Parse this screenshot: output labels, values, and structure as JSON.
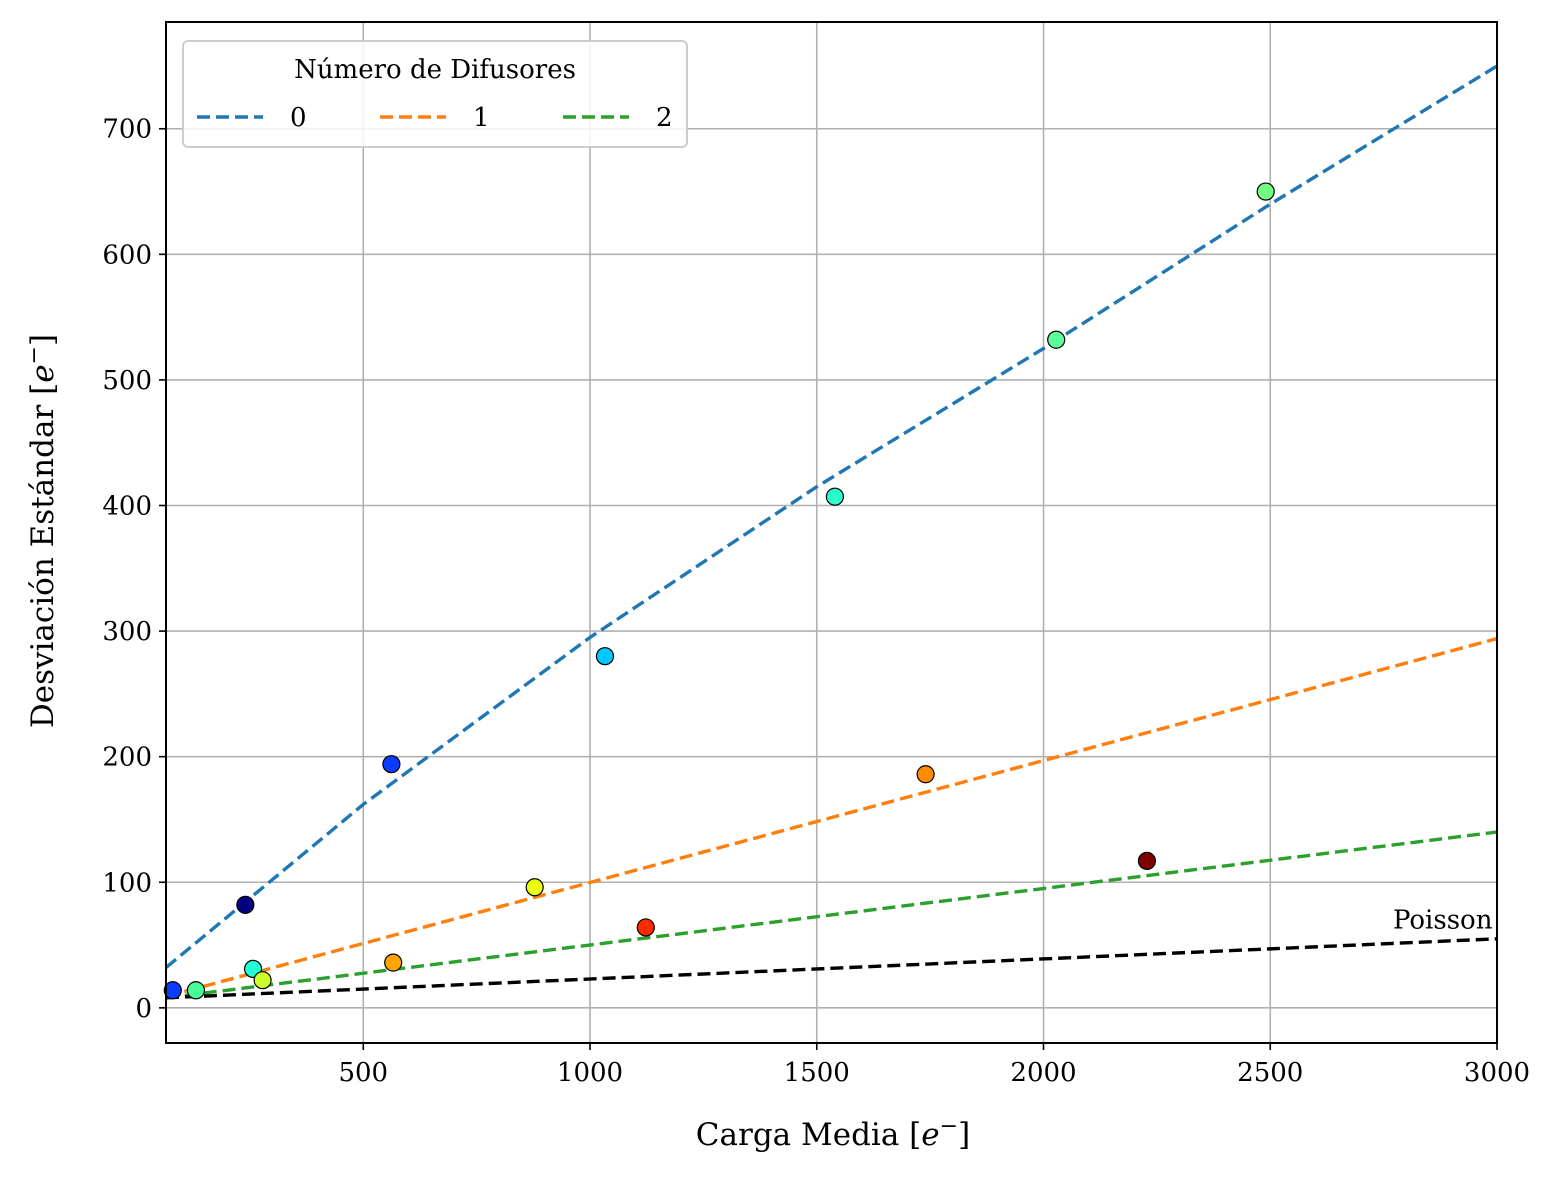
{
  "chart_data": {
    "type": "scatter",
    "xlabel": "Carga Media [",
    "ylabel": "Desviación Estándar [",
    "unit_symbol": "e",
    "unit_sup": "−",
    "unit_close": "]",
    "xlim": [
      65,
      3000
    ],
    "ylim": [
      -28,
      785
    ],
    "xticks": [
      500,
      1000,
      1500,
      2000,
      2500,
      3000
    ],
    "yticks": [
      0,
      100,
      200,
      300,
      400,
      500,
      600,
      700
    ],
    "grid": true,
    "legend": {
      "title": "Número de Difusores",
      "placement": "top-left",
      "entries": [
        {
          "label": "0",
          "color": "#1f77b4"
        },
        {
          "label": "1",
          "color": "#ff7f0e"
        },
        {
          "label": "2",
          "color": "#2ca02c"
        }
      ]
    },
    "fit_lines": [
      {
        "name": "0",
        "color": "#1f77b4",
        "x": [
          65,
          500,
          1000,
          1500,
          2000,
          2500,
          3000
        ],
        "y": [
          32,
          162,
          295,
          415,
          525,
          640,
          750
        ]
      },
      {
        "name": "1",
        "color": "#ff7f0e",
        "x": [
          65,
          3000
        ],
        "y": [
          9,
          294
        ]
      },
      {
        "name": "2",
        "color": "#2ca02c",
        "x": [
          65,
          3000
        ],
        "y": [
          8,
          140
        ]
      },
      {
        "name": "Poisson",
        "color": "#000000",
        "x": [
          65,
          3000
        ],
        "y": [
          8,
          55
        ]
      }
    ],
    "annotations": [
      {
        "text": "Poisson",
        "x": 2990,
        "y": 63
      }
    ],
    "points": [
      {
        "x": 80,
        "y": 14,
        "color": "#0a3cff"
      },
      {
        "x": 131,
        "y": 14,
        "color": "#46ff96"
      },
      {
        "x": 240,
        "y": 82,
        "color": "#000080"
      },
      {
        "x": 257,
        "y": 31,
        "color": "#22ffd4"
      },
      {
        "x": 278,
        "y": 22,
        "color": "#ccff2a"
      },
      {
        "x": 562,
        "y": 194,
        "color": "#0a3cff"
      },
      {
        "x": 566,
        "y": 36,
        "color": "#ffa500"
      },
      {
        "x": 878,
        "y": 96,
        "color": "#e8ff0f"
      },
      {
        "x": 1033,
        "y": 280,
        "color": "#00c8ff"
      },
      {
        "x": 1123,
        "y": 64,
        "color": "#ff2a00"
      },
      {
        "x": 1540,
        "y": 407,
        "color": "#2affcb"
      },
      {
        "x": 1740,
        "y": 186,
        "color": "#ff8c00"
      },
      {
        "x": 2028,
        "y": 532,
        "color": "#5cff9a"
      },
      {
        "x": 2228,
        "y": 117,
        "color": "#800000"
      },
      {
        "x": 2490,
        "y": 650,
        "color": "#72ff84"
      }
    ]
  }
}
